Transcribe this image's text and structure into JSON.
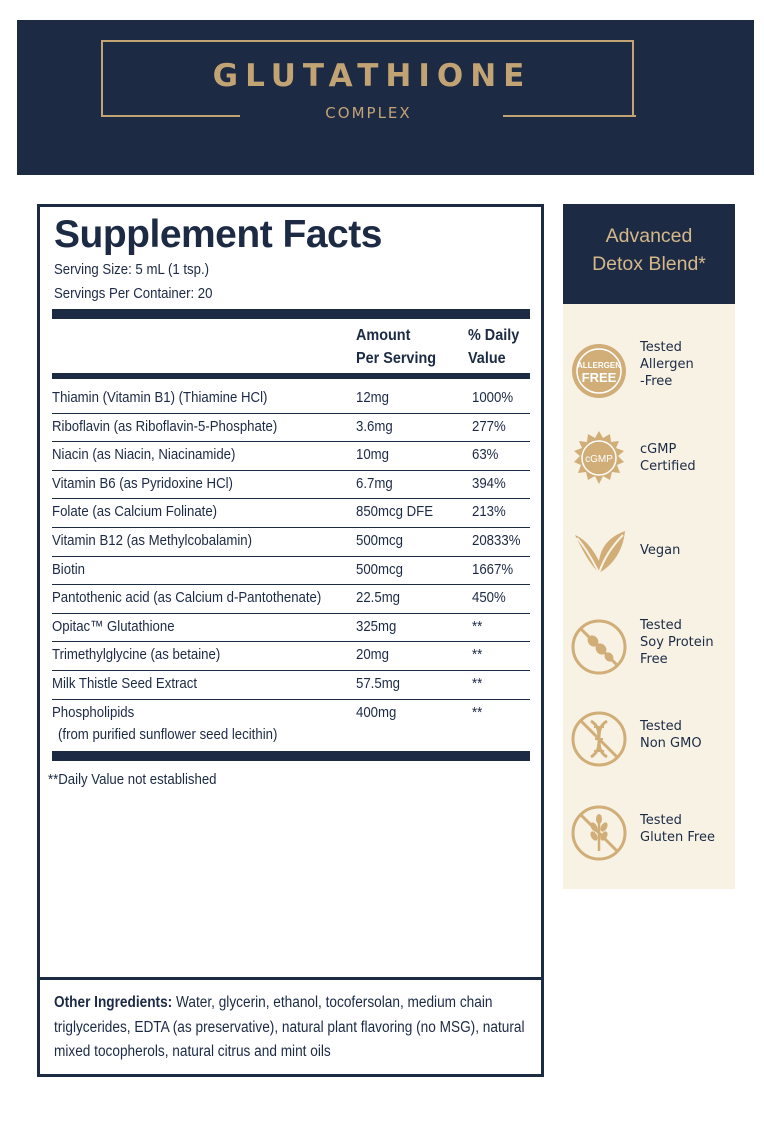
{
  "header": {
    "brand": "GLUTATHIONE",
    "subtitle": "COMPLEX"
  },
  "facts": {
    "title": "Supplement Facts",
    "serving_size": "Serving Size: 5 mL (1 tsp.)",
    "servings_per_container": "Servings Per Container: 20",
    "col_amount_1": "Amount",
    "col_amount_2": "Per Serving",
    "col_dv_1": "% Daily",
    "col_dv_2": "Value",
    "rows": [
      {
        "name": "Thiamin (Vitamin B1) (Thiamine HCl)",
        "amount": "12mg",
        "dv": "1000%"
      },
      {
        "name": "Riboflavin (as Riboflavin-5-Phosphate)",
        "amount": "3.6mg",
        "dv": "277%"
      },
      {
        "name": "Niacin (as Niacin, Niacinamide)",
        "amount": "10mg",
        "dv": "63%"
      },
      {
        "name": "Vitamin B6 (as Pyridoxine HCl)",
        "amount": "6.7mg",
        "dv": "394%"
      },
      {
        "name": "Folate (as Calcium Folinate)",
        "amount": "850mcg DFE",
        "dv": "213%"
      },
      {
        "name": "Vitamin B12 (as Methylcobalamin)",
        "amount": "500mcg",
        "dv": "20833%"
      },
      {
        "name": "Biotin",
        "amount": "500mcg",
        "dv": "1667%"
      },
      {
        "name": "Pantothenic acid (as Calcium d-Pantothenate)",
        "amount": "22.5mg",
        "dv": "450%"
      },
      {
        "name": "Opitac™ Glutathione",
        "amount": "325mg",
        "dv": "**"
      },
      {
        "name": "Trimethylglycine (as betaine)",
        "amount": "20mg",
        "dv": "**"
      },
      {
        "name": "Milk Thistle Seed Extract",
        "amount": "57.5mg",
        "dv": "**"
      },
      {
        "name": "Phospholipids",
        "name_line2": "(from purified sunflower seed lecithin)",
        "amount": "400mg",
        "dv": "**"
      }
    ],
    "footnote": "**Daily Value not established",
    "other_label": "Other Ingredients:",
    "other_text": " Water, glycerin, ethanol, tocofersolan, medium chain triglycerides, EDTA (as preservative), natural plant flavoring (no MSG), natural mixed tocopherols, natural citrus and mint oils"
  },
  "side": {
    "heading_1": "Advanced",
    "heading_2": "Detox Blend*",
    "badges": [
      {
        "icon": "allergen-free-icon",
        "icon_text_1": "ALLERGEN",
        "icon_text_2": "FREE",
        "line1": "Tested",
        "line2": "Allergen",
        "line3": "-Free"
      },
      {
        "icon": "cgmp-seal-icon",
        "icon_text_1": "cGMP",
        "line1": "cGMP",
        "line2": "Certified"
      },
      {
        "icon": "vegan-leaf-icon",
        "line1": "Vegan"
      },
      {
        "icon": "soy-free-icon",
        "line1": "Tested",
        "line2": "Soy Protein",
        "line3": "Free"
      },
      {
        "icon": "non-gmo-icon",
        "line1": "Tested",
        "line2": "Non GMO"
      },
      {
        "icon": "gluten-free-icon",
        "line1": "Tested",
        "line2": "Gluten Free"
      }
    ]
  },
  "colors": {
    "navy": "#1c2a44",
    "gold": "#c2a374",
    "cream": "#f7f2e4"
  }
}
